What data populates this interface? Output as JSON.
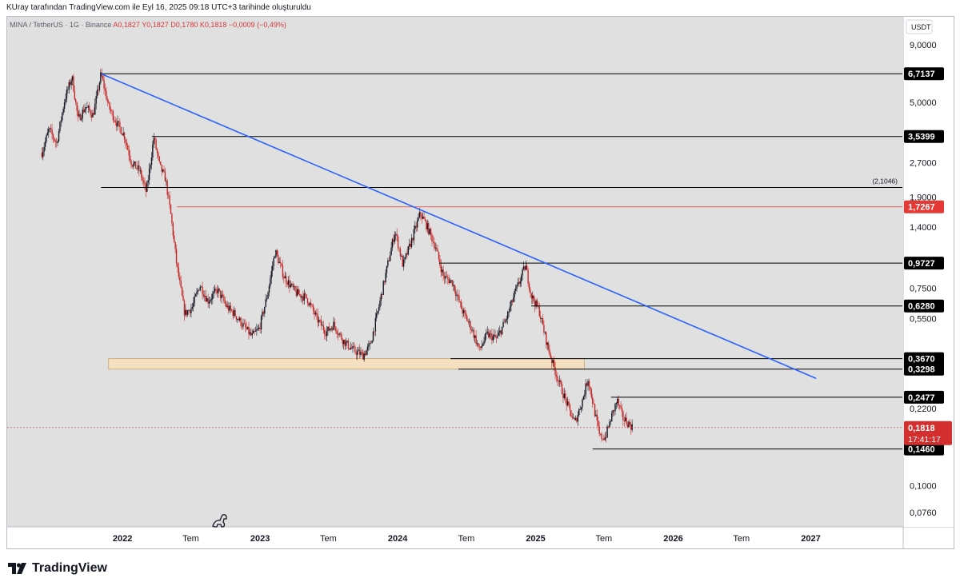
{
  "header": {
    "attribution": "KUray tarafından TradingView.com ile Eyl 16, 2025 09:18 UTC+3 tarihinde oluşturuldu"
  },
  "legend": {
    "symbol": "MINA / TetherUS · 1G · Binance",
    "ohlc": "A0,1827  Y0,1827  D0,1780  K0,1818  −0,0009 (−0,49%)"
  },
  "footer": {
    "brand": "TradingView"
  },
  "colors": {
    "chart_bg": "#e0e0e0",
    "trendline": "#2962ff",
    "up_candle": "#131722",
    "down_candle": "#c62828",
    "zone_fill": "#f4dfc1",
    "zone_border": "#c9a56b",
    "red_level": "#e53935",
    "current_price_bg": "#d32f2f"
  },
  "chart_data": {
    "type": "candlestick",
    "title": "",
    "xlabel": "",
    "ylabel": "",
    "y_scale": "log",
    "currency_label": "USDT",
    "ylim": [
      0.066,
      12.0
    ],
    "xlim": [
      "2021-03-01",
      "2027-09-01"
    ],
    "y_ticks": [
      {
        "value": 9.0,
        "label": "9,0000"
      },
      {
        "value": 5.0,
        "label": "5,0000"
      },
      {
        "value": 2.7,
        "label": "2,7000"
      },
      {
        "value": 1.9,
        "label": "1,9000"
      },
      {
        "value": 1.4,
        "label": "1,4000"
      },
      {
        "value": 0.75,
        "label": "0,7500"
      },
      {
        "value": 0.55,
        "label": "0,5500"
      },
      {
        "value": 0.22,
        "label": "0,2200"
      },
      {
        "value": 0.1,
        "label": "0,1000"
      },
      {
        "value": 0.076,
        "label": "0,0760"
      }
    ],
    "x_ticks": [
      {
        "date": "2022-01-01",
        "label": "2022",
        "bold": true
      },
      {
        "date": "2022-07-01",
        "label": "Tem",
        "bold": false
      },
      {
        "date": "2023-01-01",
        "label": "2023",
        "bold": true
      },
      {
        "date": "2023-07-01",
        "label": "Tem",
        "bold": false
      },
      {
        "date": "2024-01-01",
        "label": "2024",
        "bold": true
      },
      {
        "date": "2024-07-01",
        "label": "Tem",
        "bold": false
      },
      {
        "date": "2025-01-01",
        "label": "2025",
        "bold": true
      },
      {
        "date": "2025-07-01",
        "label": "Tem",
        "bold": false
      },
      {
        "date": "2026-01-01",
        "label": "2026",
        "bold": true
      },
      {
        "date": "2026-07-01",
        "label": "Tem",
        "bold": false
      },
      {
        "date": "2027-01-01",
        "label": "2027",
        "bold": true
      }
    ],
    "price_path": [
      [
        "2021-06-01",
        3.0
      ],
      [
        "2021-06-20",
        3.8
      ],
      [
        "2021-07-10",
        3.3
      ],
      [
        "2021-08-01",
        5.2
      ],
      [
        "2021-08-20",
        6.5
      ],
      [
        "2021-09-05",
        4.2
      ],
      [
        "2021-09-25",
        4.8
      ],
      [
        "2021-10-15",
        4.4
      ],
      [
        "2021-11-05",
        6.7
      ],
      [
        "2021-11-25",
        4.8
      ],
      [
        "2021-12-15",
        4.1
      ],
      [
        "2022-01-05",
        3.6
      ],
      [
        "2022-01-25",
        2.7
      ],
      [
        "2022-02-15",
        2.5
      ],
      [
        "2022-03-05",
        2.0
      ],
      [
        "2022-03-25",
        3.5
      ],
      [
        "2022-04-10",
        2.6
      ],
      [
        "2022-04-25",
        2.3
      ],
      [
        "2022-05-10",
        1.55
      ],
      [
        "2022-05-25",
        0.95
      ],
      [
        "2022-06-15",
        0.58
      ],
      [
        "2022-07-05",
        0.62
      ],
      [
        "2022-07-25",
        0.78
      ],
      [
        "2022-08-15",
        0.66
      ],
      [
        "2022-09-10",
        0.74
      ],
      [
        "2022-10-05",
        0.62
      ],
      [
        "2022-10-25",
        0.58
      ],
      [
        "2022-11-15",
        0.52
      ],
      [
        "2022-12-10",
        0.46
      ],
      [
        "2022-12-30",
        0.5
      ],
      [
        "2023-01-20",
        0.7
      ],
      [
        "2023-02-10",
        1.1
      ],
      [
        "2023-03-05",
        0.85
      ],
      [
        "2023-04-05",
        0.72
      ],
      [
        "2023-05-05",
        0.68
      ],
      [
        "2023-06-01",
        0.55
      ],
      [
        "2023-06-25",
        0.48
      ],
      [
        "2023-07-15",
        0.52
      ],
      [
        "2023-08-10",
        0.44
      ],
      [
        "2023-09-05",
        0.4
      ],
      [
        "2023-10-01",
        0.38
      ],
      [
        "2023-10-20",
        0.42
      ],
      [
        "2023-11-10",
        0.6
      ],
      [
        "2023-12-05",
        0.95
      ],
      [
        "2023-12-25",
        1.35
      ],
      [
        "2024-01-15",
        0.95
      ],
      [
        "2024-02-05",
        1.2
      ],
      [
        "2024-03-01",
        1.62
      ],
      [
        "2024-03-20",
        1.4
      ],
      [
        "2024-04-10",
        1.15
      ],
      [
        "2024-05-01",
        0.85
      ],
      [
        "2024-05-25",
        0.8
      ],
      [
        "2024-06-20",
        0.6
      ],
      [
        "2024-07-15",
        0.5
      ],
      [
        "2024-08-05",
        0.4
      ],
      [
        "2024-08-25",
        0.47
      ],
      [
        "2024-09-20",
        0.45
      ],
      [
        "2024-10-15",
        0.55
      ],
      [
        "2024-11-05",
        0.7
      ],
      [
        "2024-12-05",
        0.95
      ],
      [
        "2024-12-20",
        0.7
      ],
      [
        "2025-01-10",
        0.6
      ],
      [
        "2025-02-01",
        0.42
      ],
      [
        "2025-02-20",
        0.33
      ],
      [
        "2025-03-10",
        0.27
      ],
      [
        "2025-03-30",
        0.22
      ],
      [
        "2025-04-15",
        0.19
      ],
      [
        "2025-05-05",
        0.24
      ],
      [
        "2025-05-20",
        0.3
      ],
      [
        "2025-06-05",
        0.22
      ],
      [
        "2025-06-20",
        0.165
      ],
      [
        "2025-07-05",
        0.165
      ],
      [
        "2025-07-20",
        0.2
      ],
      [
        "2025-08-05",
        0.24
      ],
      [
        "2025-08-20",
        0.2
      ],
      [
        "2025-09-16",
        0.1818
      ]
    ],
    "horizontal_levels": [
      {
        "label": "6,7137",
        "value": 6.7137,
        "start": "2021-11-05",
        "color": "#000000",
        "badge_bg": "#000000",
        "badge_fg": "#ffffff"
      },
      {
        "label": "3,5399",
        "value": 3.5399,
        "start": "2022-03-20",
        "color": "#000000",
        "badge_bg": "#000000",
        "badge_fg": "#ffffff"
      },
      {
        "label": "(2,1046)",
        "value": 2.1046,
        "start": "2021-11-05",
        "color": "#000000",
        "badge_bg": "",
        "badge_fg": "#131722"
      },
      {
        "label": "1,7267",
        "value": 1.7267,
        "start": "2022-05-25",
        "color": "#e53935",
        "badge_bg": "#e53935",
        "badge_fg": "#ffffff"
      },
      {
        "label": "0,9727",
        "value": 0.9727,
        "start": "2024-04-20",
        "color": "#000000",
        "badge_bg": "#000000",
        "badge_fg": "#ffffff"
      },
      {
        "label": "0,6280",
        "value": 0.628,
        "start": "2024-12-20",
        "color": "#000000",
        "badge_bg": "#000000",
        "badge_fg": "#ffffff"
      },
      {
        "label": "0,3670",
        "value": 0.367,
        "start": "2024-05-20",
        "color": "#000000",
        "badge_bg": "#000000",
        "badge_fg": "#ffffff"
      },
      {
        "label": "0,3298",
        "value": 0.3298,
        "start": "2024-06-10",
        "color": "#000000",
        "badge_bg": "#000000",
        "badge_fg": "#ffffff"
      },
      {
        "label": "0,2477",
        "value": 0.2477,
        "start": "2025-07-20",
        "color": "#000000",
        "badge_bg": "#000000",
        "badge_fg": "#ffffff"
      },
      {
        "label": "0,1460",
        "value": 0.146,
        "start": "2025-06-01",
        "color": "#000000",
        "badge_bg": "#000000",
        "badge_fg": "#ffffff"
      }
    ],
    "trendline": {
      "from": [
        "2021-11-05",
        6.7137
      ],
      "to": [
        "2027-01-15",
        0.3
      ]
    },
    "support_zone": {
      "from": "2021-11-25",
      "to": "2025-05-10",
      "low": 0.3298,
      "high": 0.367
    },
    "current_price": {
      "value": 0.1818,
      "label": "0,1818",
      "countdown": "17:41:17"
    }
  }
}
